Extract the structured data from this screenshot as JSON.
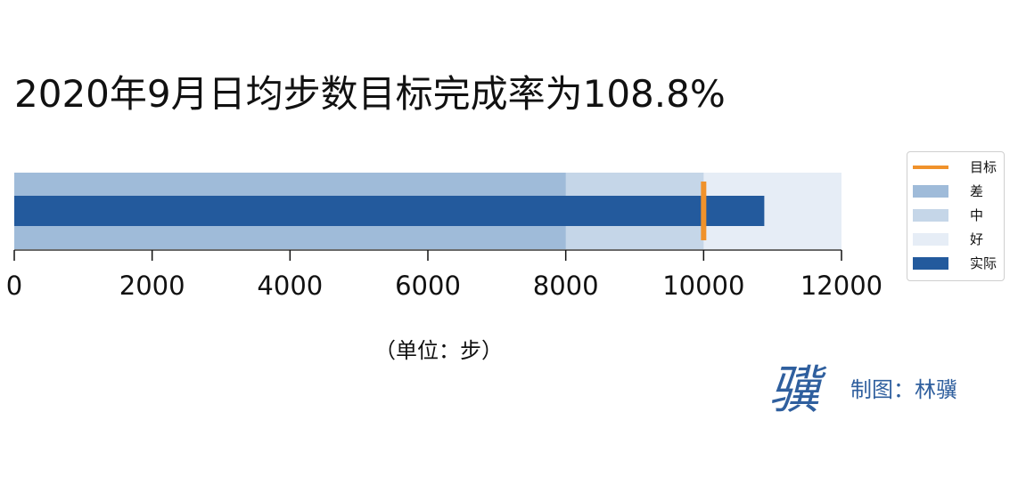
{
  "chart_data": {
    "type": "bar",
    "orientation": "horizontal",
    "subtype": "bullet",
    "title": "2020年9月日均步数目标完成率为108.8%",
    "xlabel": "（单位：步）",
    "xlim": [
      0,
      12000
    ],
    "xticks": [
      0,
      2000,
      4000,
      6000,
      8000,
      10000,
      12000
    ],
    "ranges": [
      {
        "name": "差",
        "value": 8000,
        "color": "#9fbbd9"
      },
      {
        "name": "中",
        "value": 10000,
        "color": "#c5d6e8"
      },
      {
        "name": "好",
        "value": 12000,
        "color": "#e6edf6"
      }
    ],
    "actual": {
      "name": "实际",
      "value": 10880,
      "color": "#235a9d"
    },
    "target": {
      "name": "目标",
      "value": 10000,
      "color": "#f0922b"
    },
    "legend_position": "right",
    "legend_order": [
      "目标",
      "差",
      "中",
      "好",
      "实际"
    ],
    "grid": false
  },
  "credit": "制图：林骥",
  "signature_glyph": "骥",
  "accent_color": "#2f5f9e"
}
